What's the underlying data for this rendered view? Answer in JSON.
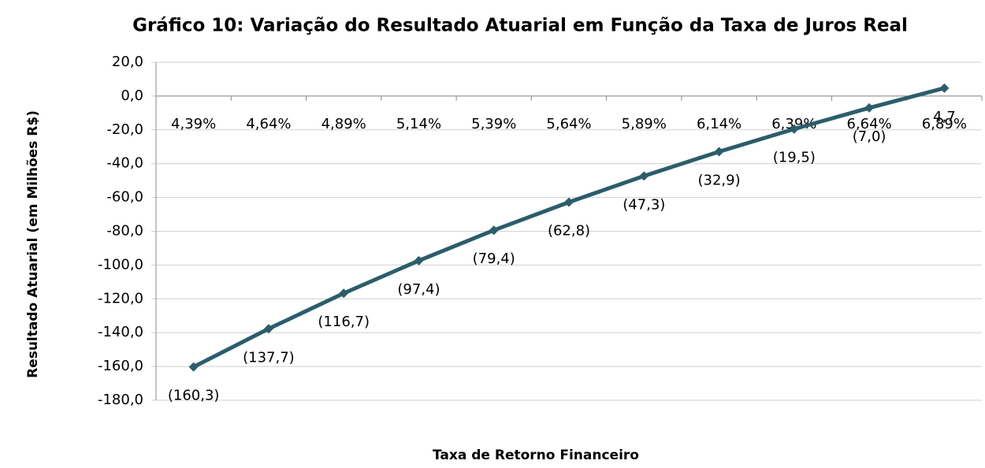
{
  "chart_data": {
    "type": "line",
    "title": "Gráfico 10:  Variação do Resultado Atuarial em Função da Taxa de Juros Real",
    "xlabel": "Taxa de Retorno Financeiro",
    "ylabel": "Resultado Atuarial (em Milhões R$)",
    "categories": [
      "4,39%",
      "4,64%",
      "4,89%",
      "5,14%",
      "5,39%",
      "5,64%",
      "5,89%",
      "6,14%",
      "6,39%",
      "6,64%",
      "6,89%"
    ],
    "series": [
      {
        "name": "Resultado Atuarial",
        "color": "#2b5d6b",
        "values": [
          -160.3,
          -137.7,
          -116.7,
          -97.4,
          -79.4,
          -62.8,
          -47.3,
          -32.9,
          -19.5,
          -7.0,
          4.7
        ],
        "value_labels": [
          "(160,3)",
          "(137,7)",
          "(116,7)",
          "(97,4)",
          "(79,4)",
          "(62,8)",
          "(47,3)",
          "(32,9)",
          "(19,5)",
          "(7,0)",
          "4,7"
        ]
      }
    ],
    "ylim": [
      -180,
      20
    ],
    "yticks": [
      {
        "value": 20,
        "label": "20,0"
      },
      {
        "value": 0,
        "label": "0,0"
      },
      {
        "value": -20,
        "label": "-20,0"
      },
      {
        "value": -40,
        "label": "-40,0"
      },
      {
        "value": -60,
        "label": "-60,0"
      },
      {
        "value": -80,
        "label": "-80,0"
      },
      {
        "value": -100,
        "label": "-100,0"
      },
      {
        "value": -120,
        "label": "-120,0"
      },
      {
        "value": -140,
        "label": "-140,0"
      },
      {
        "value": -160,
        "label": "-160,0"
      },
      {
        "value": -180,
        "label": "-180,0"
      }
    ],
    "grid": true
  }
}
